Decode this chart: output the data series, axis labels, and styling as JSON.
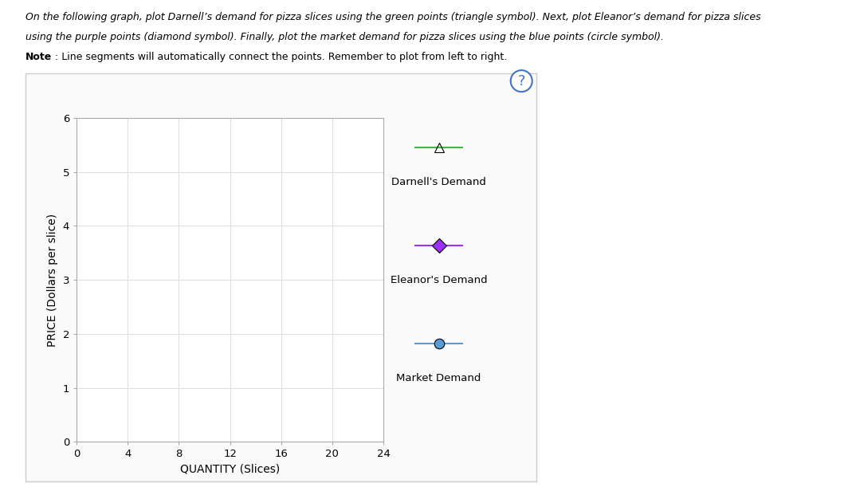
{
  "xlabel": "QUANTITY (Slices)",
  "ylabel": "PRICE (Dollars per slice)",
  "xlim": [
    0,
    24
  ],
  "ylim": [
    0,
    6
  ],
  "xticks": [
    0,
    4,
    8,
    12,
    16,
    20,
    24
  ],
  "yticks": [
    0,
    1,
    2,
    3,
    4,
    5,
    6
  ],
  "darnell_color": "#4CAF50",
  "eleanor_color": "#9B30FF",
  "market_color": "#5B9BD5",
  "legend_labels": [
    "Darnell's Demand",
    "Eleanor's Demand",
    "Market Demand"
  ],
  "grid_color": "#DDDDDD",
  "container_color": "#F5F5F5",
  "container_border": "#CCCCCC",
  "line1_italic": "On the following graph, plot Darnell’s demand for pizza slices using the green points (triangle symbol). Next, plot Eleanor’s demand for pizza slices",
  "line2_italic": "using the purple points (diamond symbol). Finally, plot the market demand for pizza slices using the blue points (circle symbol).",
  "line3_bold": "Note",
  "line3_rest": ": Line segments will automatically connect the points. Remember to plot from left to right."
}
